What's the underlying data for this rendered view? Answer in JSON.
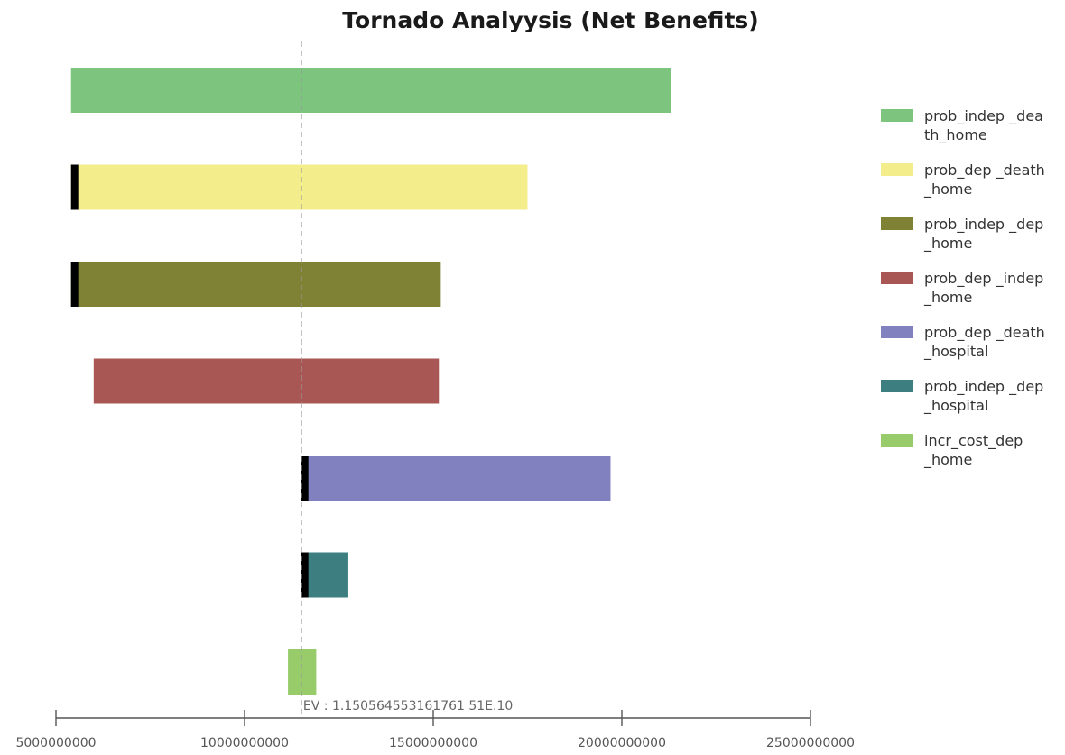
{
  "chart_data": {
    "type": "bar",
    "subtype": "tornado",
    "title": "Tornado Analyysis (Net Benefits)",
    "xlabel": "",
    "ylabel": "",
    "xlim": [
      5000000000,
      25000000000
    ],
    "x_ticks": [
      5000000000,
      10000000000,
      15000000000,
      20000000000,
      25000000000
    ],
    "x_tick_labels": [
      "5000000000",
      "10000000000",
      "15000000000",
      "20000000000",
      "25000000000"
    ],
    "ev_value": 11505645531.617615,
    "ev_label": "EV : 1.150564553161761 51E.10",
    "grid": false,
    "legend_position": "right",
    "series": [
      {
        "name": "prob_indep _death_home",
        "legend_lines": [
          "prob_indep _dea",
          "th_home"
        ],
        "low": 5400000000,
        "high": 21300000000,
        "color": "#7dc47f",
        "marker_side": "none"
      },
      {
        "name": "prob_dep _death _home",
        "legend_lines": [
          "prob_dep _death",
          "_home"
        ],
        "low": 5400000000,
        "high": 17500000000,
        "color": "#f3ee8b",
        "marker_side": "low"
      },
      {
        "name": "prob_indep _dep _home",
        "legend_lines": [
          "prob_indep _dep",
          "_home"
        ],
        "low": 5400000000,
        "high": 15200000000,
        "color": "#7f8134",
        "marker_side": "low"
      },
      {
        "name": "prob_dep _indep _home",
        "legend_lines": [
          "prob_dep _indep",
          "_home"
        ],
        "low": 6000000000,
        "high": 15150000000,
        "color": "#a95754",
        "marker_side": "none"
      },
      {
        "name": "prob_dep _death _hospital",
        "legend_lines": [
          "prob_dep _death",
          "_hospital"
        ],
        "low": 11500000000,
        "high": 19700000000,
        "color": "#8181c0",
        "marker_side": "low"
      },
      {
        "name": "prob_indep _dep _hospital",
        "legend_lines": [
          "prob_indep _dep",
          "_hospital"
        ],
        "low": 11500000000,
        "high": 12750000000,
        "color": "#3d7f80",
        "marker_side": "low"
      },
      {
        "name": "incr_cost_dep _home",
        "legend_lines": [
          "incr_cost_dep",
          "_home"
        ],
        "low": 11150000000,
        "high": 11900000000,
        "color": "#98cc6b",
        "marker_side": "none"
      }
    ]
  }
}
